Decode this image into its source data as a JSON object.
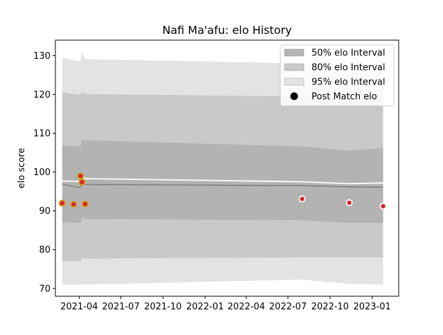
{
  "chart_data": {
    "type": "area",
    "title": "Nafi Ma'afu: elo History",
    "xlabel": "",
    "ylabel": "elo score",
    "ylim": [
      68,
      134
    ],
    "xlim": [
      "2021-02-08",
      "2023-02-28"
    ],
    "grid": false,
    "legend_position": "upper right",
    "x_ticks": [
      "2021-04",
      "2021-07",
      "2021-10",
      "2022-01",
      "2022-04",
      "2022-07",
      "2022-10",
      "2023-01"
    ],
    "y_ticks": [
      70,
      80,
      90,
      100,
      110,
      120,
      130
    ],
    "legend": [
      {
        "label": "50% elo Interval",
        "kind": "band",
        "color": "#b3b3b3"
      },
      {
        "label": "80% elo Interval",
        "kind": "band",
        "color": "#c9c9c9"
      },
      {
        "label": "95% elo Interval",
        "kind": "band",
        "color": "#e3e3e3"
      },
      {
        "label": "Post Match elo",
        "kind": "point",
        "color": "#000000"
      }
    ],
    "bands_x": [
      "2021-02-23",
      "2021-03-28",
      "2021-04-04",
      "2021-04-07",
      "2021-04-14",
      "2022-08-01",
      "2022-11-12",
      "2023-01-25"
    ],
    "band_95": {
      "upper": [
        129.5,
        128.6,
        128.7,
        131.0,
        129.1,
        128.0,
        127.5,
        127.7
      ],
      "lower": [
        71.0,
        71.0,
        71.0,
        71.1,
        71.0,
        72.3,
        71.2,
        71.0
      ]
    },
    "band_80": {
      "upper": [
        120.6,
        120.0,
        120.0,
        120.5,
        120.1,
        119.5,
        119.0,
        119.2
      ],
      "lower": [
        77.0,
        77.0,
        77.0,
        78.1,
        77.7,
        78.0,
        78.0,
        78.0
      ]
    },
    "band_50": {
      "upper": [
        106.8,
        106.6,
        106.6,
        108.2,
        108.2,
        106.6,
        105.5,
        106.2
      ],
      "lower": [
        87.0,
        86.9,
        86.9,
        88.3,
        87.9,
        87.6,
        86.9,
        86.9
      ]
    },
    "series": [
      {
        "name": "",
        "color": "#808080",
        "x": [
          "2021-02-23",
          "2021-03-28",
          "2021-04-04",
          "2021-04-07",
          "2021-04-14",
          "2022-08-01",
          "2022-11-12",
          "2023-01-25"
        ],
        "values": [
          96.9,
          96.1,
          96.1,
          97.2,
          96.8,
          96.5,
          96.2,
          96.1
        ]
      },
      {
        "name": "",
        "color": "#ffffff",
        "x": [
          "2021-02-23",
          "2021-03-28",
          "2021-04-04",
          "2021-04-07",
          "2021-04-14",
          "2022-08-01",
          "2022-11-12",
          "2023-01-25"
        ],
        "values": [
          97.7,
          97.6,
          97.7,
          98.8,
          98.3,
          97.5,
          97.0,
          97.2
        ]
      }
    ],
    "points": [
      {
        "x": "2021-02-23",
        "value": 92.0,
        "color": "#d4a017"
      },
      {
        "x": "2021-03-20",
        "value": 91.7,
        "color": "#d4a017"
      },
      {
        "x": "2021-04-04",
        "value": 99.0,
        "color": "#d4a017"
      },
      {
        "x": "2021-04-07",
        "value": 97.4,
        "color": "#d4a017"
      },
      {
        "x": "2021-04-14",
        "value": 91.8,
        "color": "#d4a017"
      },
      {
        "x": "2022-08-01",
        "value": 93.1,
        "color": "#ffffff"
      },
      {
        "x": "2022-11-12",
        "value": 92.1,
        "color": "#ffffff"
      },
      {
        "x": "2023-01-25",
        "value": 91.2,
        "color": "#ffffff"
      }
    ]
  }
}
